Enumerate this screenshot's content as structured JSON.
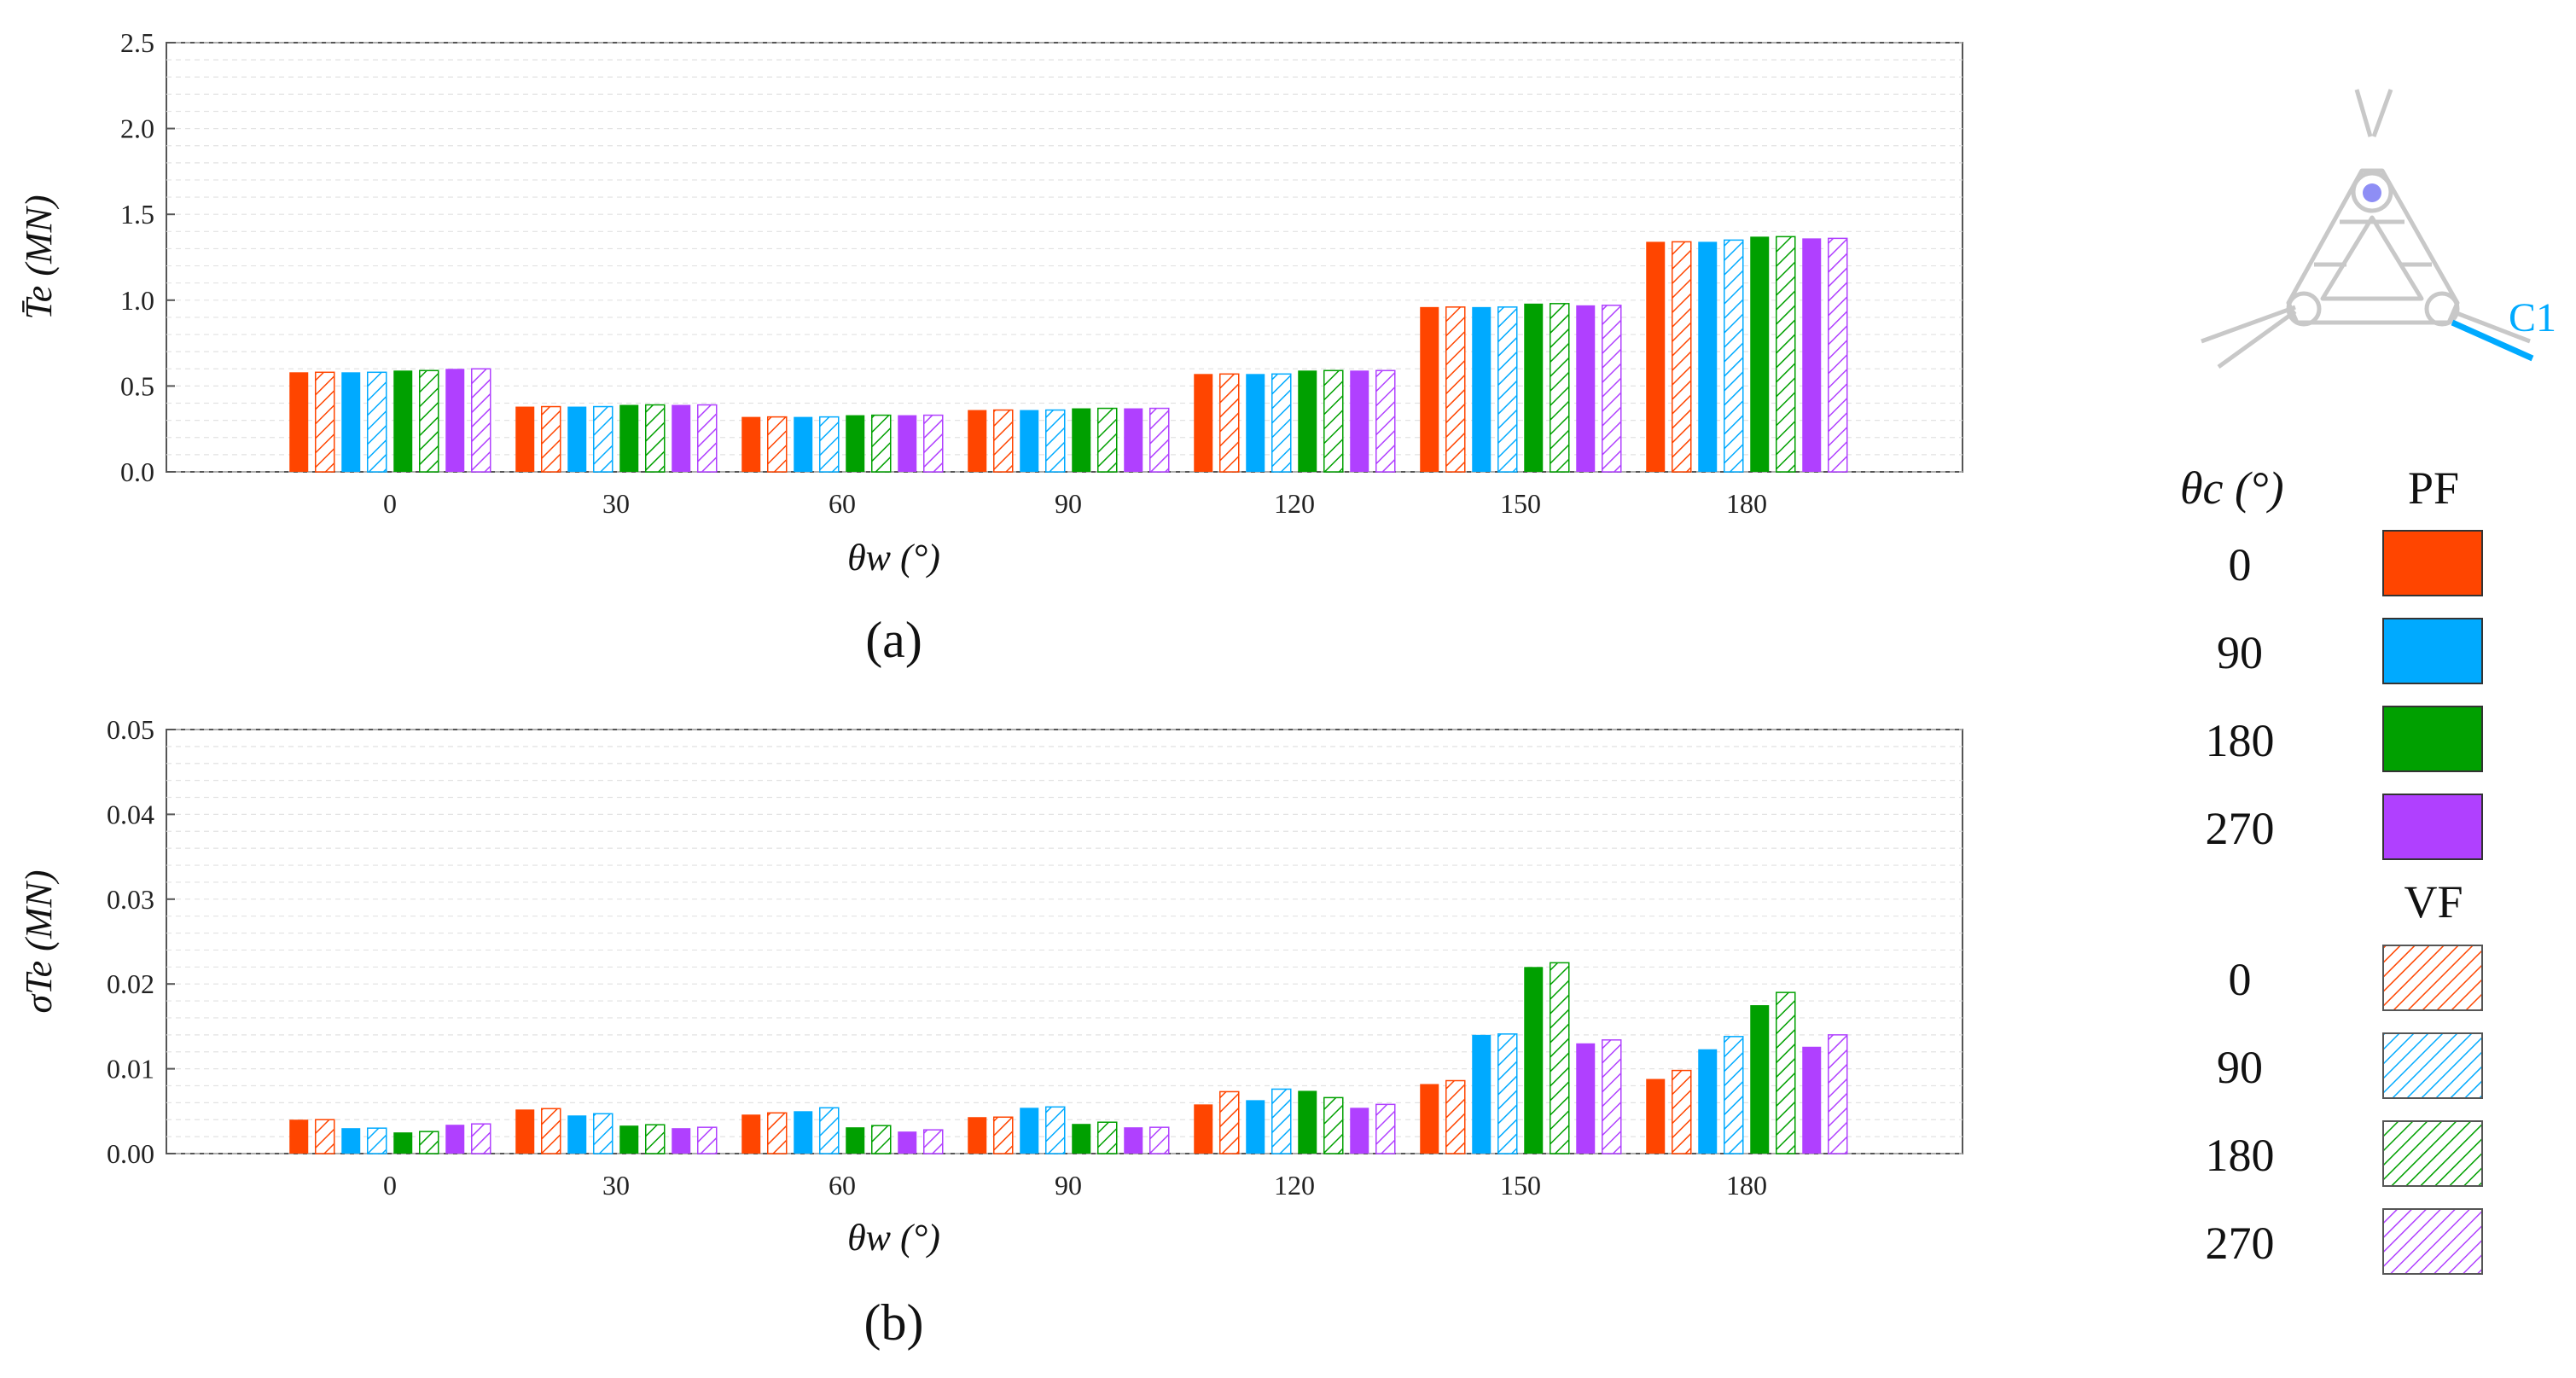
{
  "colors": {
    "theta_c_0": "#ff4500",
    "theta_c_90": "#00aaff",
    "theta_c_180": "#00a000",
    "theta_c_270": "#b040ff"
  },
  "chart_data": [
    {
      "type": "bar",
      "panel_label": "(a)",
      "ylabel": "T̄e (MN)",
      "xlabel": "θw (°)",
      "categories": [
        "0",
        "30",
        "60",
        "90",
        "120",
        "150",
        "180"
      ],
      "ylim": [
        0,
        2.5
      ],
      "yticks": [
        "0.0",
        "0.5",
        "1.0",
        "1.5",
        "2.0",
        "2.5"
      ],
      "ytick_values": [
        0,
        0.5,
        1.0,
        1.5,
        2.0,
        2.5
      ],
      "grid": true,
      "series": [
        {
          "name": "0",
          "group": "PF",
          "color_key": "theta_c_0",
          "values": [
            0.58,
            0.38,
            0.32,
            0.36,
            0.57,
            0.96,
            1.34
          ]
        },
        {
          "name": "0",
          "group": "VF",
          "color_key": "theta_c_0",
          "values": [
            0.58,
            0.38,
            0.32,
            0.36,
            0.57,
            0.96,
            1.34
          ]
        },
        {
          "name": "90",
          "group": "PF",
          "color_key": "theta_c_90",
          "values": [
            0.58,
            0.38,
            0.32,
            0.36,
            0.57,
            0.96,
            1.34
          ]
        },
        {
          "name": "90",
          "group": "VF",
          "color_key": "theta_c_90",
          "values": [
            0.58,
            0.38,
            0.32,
            0.36,
            0.57,
            0.96,
            1.35
          ]
        },
        {
          "name": "180",
          "group": "PF",
          "color_key": "theta_c_180",
          "values": [
            0.59,
            0.39,
            0.33,
            0.37,
            0.59,
            0.98,
            1.37
          ]
        },
        {
          "name": "180",
          "group": "VF",
          "color_key": "theta_c_180",
          "values": [
            0.59,
            0.39,
            0.33,
            0.37,
            0.59,
            0.98,
            1.37
          ]
        },
        {
          "name": "270",
          "group": "PF",
          "color_key": "theta_c_270",
          "values": [
            0.6,
            0.39,
            0.33,
            0.37,
            0.59,
            0.97,
            1.36
          ]
        },
        {
          "name": "270",
          "group": "VF",
          "color_key": "theta_c_270",
          "values": [
            0.6,
            0.39,
            0.33,
            0.37,
            0.59,
            0.97,
            1.36
          ]
        }
      ]
    },
    {
      "type": "bar",
      "panel_label": "(b)",
      "ylabel": "σTe (MN)",
      "xlabel": "θw (°)",
      "categories": [
        "0",
        "30",
        "60",
        "90",
        "120",
        "150",
        "180"
      ],
      "ylim": [
        0,
        0.05
      ],
      "yticks": [
        "0.00",
        "0.01",
        "0.02",
        "0.03",
        "0.04",
        "0.05"
      ],
      "ytick_values": [
        0,
        0.01,
        0.02,
        0.03,
        0.04,
        0.05
      ],
      "grid": true,
      "series": [
        {
          "name": "0",
          "group": "PF",
          "color_key": "theta_c_0",
          "values": [
            0.004,
            0.0052,
            0.0046,
            0.0043,
            0.0058,
            0.0082,
            0.0088
          ]
        },
        {
          "name": "0",
          "group": "VF",
          "color_key": "theta_c_0",
          "values": [
            0.004,
            0.0053,
            0.0048,
            0.0043,
            0.0073,
            0.0086,
            0.0098
          ]
        },
        {
          "name": "90",
          "group": "PF",
          "color_key": "theta_c_90",
          "values": [
            0.003,
            0.0045,
            0.005,
            0.0054,
            0.0063,
            0.014,
            0.0123
          ]
        },
        {
          "name": "90",
          "group": "VF",
          "color_key": "theta_c_90",
          "values": [
            0.003,
            0.0047,
            0.0054,
            0.0055,
            0.0076,
            0.0141,
            0.0138
          ]
        },
        {
          "name": "180",
          "group": "PF",
          "color_key": "theta_c_180",
          "values": [
            0.0025,
            0.0033,
            0.0031,
            0.0035,
            0.0074,
            0.022,
            0.0175
          ]
        },
        {
          "name": "180",
          "group": "VF",
          "color_key": "theta_c_180",
          "values": [
            0.0026,
            0.0034,
            0.0033,
            0.0037,
            0.0066,
            0.0225,
            0.019
          ]
        },
        {
          "name": "270",
          "group": "PF",
          "color_key": "theta_c_270",
          "values": [
            0.0034,
            0.003,
            0.0026,
            0.0031,
            0.0054,
            0.013,
            0.0126
          ]
        },
        {
          "name": "270",
          "group": "VF",
          "color_key": "theta_c_270",
          "values": [
            0.0035,
            0.0031,
            0.0028,
            0.0031,
            0.0058,
            0.0134,
            0.014
          ]
        }
      ]
    }
  ],
  "legend": {
    "header_left": "θc (°)",
    "pf_title": "PF",
    "vf_title": "VF",
    "pf_items": [
      {
        "label": "0",
        "color_key": "theta_c_0"
      },
      {
        "label": "90",
        "color_key": "theta_c_90"
      },
      {
        "label": "180",
        "color_key": "theta_c_180"
      },
      {
        "label": "270",
        "color_key": "theta_c_270"
      }
    ],
    "vf_items": [
      {
        "label": "0",
        "color_key": "theta_c_0"
      },
      {
        "label": "90",
        "color_key": "theta_c_90"
      },
      {
        "label": "180",
        "color_key": "theta_c_180"
      },
      {
        "label": "270",
        "color_key": "theta_c_270"
      }
    ]
  },
  "schematic": {
    "label": "C1",
    "icon": "triangular-platform-schematic-icon"
  }
}
